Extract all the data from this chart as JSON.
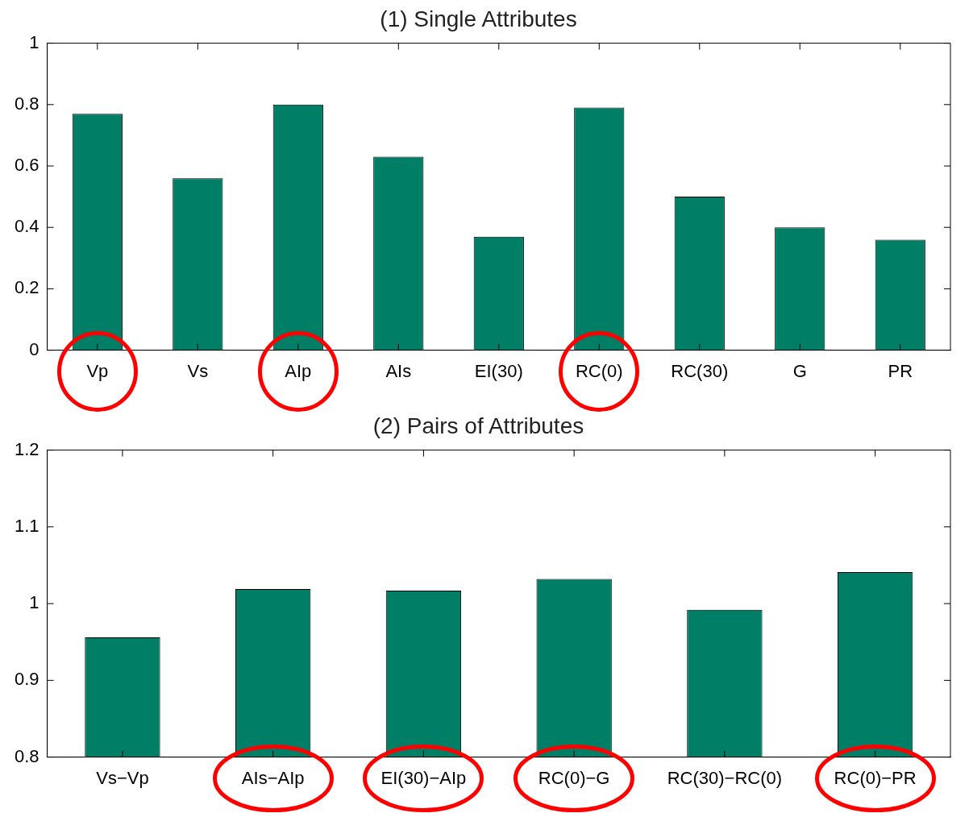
{
  "chart_data": [
    {
      "type": "bar",
      "title": "(1) Single Attributes",
      "categories": [
        "Vp",
        "Vs",
        "AIp",
        "AIs",
        "EI(30)",
        "RC(0)",
        "RC(30)",
        "G",
        "PR"
      ],
      "values": [
        0.77,
        0.56,
        0.8,
        0.63,
        0.37,
        0.79,
        0.5,
        0.4,
        0.36
      ],
      "color": "#007f66",
      "ylim": [
        0,
        1
      ],
      "yticks": [
        0,
        0.2,
        0.4,
        0.6,
        0.8,
        1
      ],
      "grid": false
    },
    {
      "type": "bar",
      "title": "(2) Pairs of Attributes",
      "categories": [
        "Vs−Vp",
        "AIs−AIp",
        "EI(30)−AIp",
        "RC(0)−G",
        "RC(30)−RC(0)",
        "RC(0)−PR"
      ],
      "values": [
        0.956,
        1.019,
        1.017,
        1.032,
        0.992,
        1.041
      ],
      "color": "#007f66",
      "ylim": [
        0.8,
        1.2
      ],
      "yticks": [
        0.8,
        0.9,
        1,
        1.1,
        1.2
      ],
      "grid": false
    }
  ]
}
